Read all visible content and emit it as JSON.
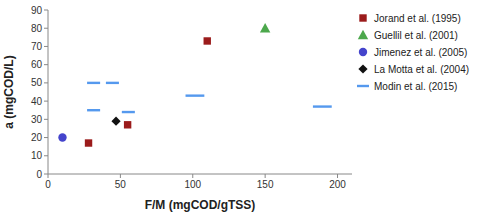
{
  "chart_data": {
    "type": "scatter",
    "x_label": "F/M (mgCOD/gTSS)",
    "y_label": "a (mgCOD/L)",
    "xlim": [
      0,
      210
    ],
    "ylim": [
      0,
      90
    ],
    "xticks": [
      0,
      50,
      100,
      150,
      200
    ],
    "yticks": [
      0,
      10,
      20,
      30,
      40,
      50,
      60,
      70,
      80,
      90
    ],
    "grid": false,
    "legend": "right",
    "series": [
      {
        "name": "Jorand et al. (1995)",
        "color": "#9B1B1B",
        "marker": "square",
        "x": [
          28,
          55,
          110
        ],
        "values": [
          17,
          27,
          73
        ]
      },
      {
        "name": "Guellil et al. (2001)",
        "color": "#4CA84C",
        "marker": "triangle",
        "x": [
          150
        ],
        "values": [
          80
        ]
      },
      {
        "name": "Jimenez et al. (2005)",
        "color": "#4444CC",
        "marker": "circle",
        "x": [
          10
        ],
        "values": [
          20
        ]
      },
      {
        "name": "La Motta et al. (2004)",
        "color": "#111111",
        "marker": "diamond",
        "x": [
          47
        ],
        "values": [
          29
        ]
      },
      {
        "name": "Modin et al. (2015)",
        "color": "#5599EE",
        "type": "segment",
        "line_style": "solid",
        "x": [
          [
            27,
            36
          ],
          [
            27,
            36
          ],
          [
            40,
            49
          ],
          [
            51,
            60
          ],
          [
            95,
            108
          ],
          [
            183,
            196
          ]
        ],
        "values": [
          35,
          50,
          50,
          34,
          43,
          37
        ]
      }
    ]
  }
}
